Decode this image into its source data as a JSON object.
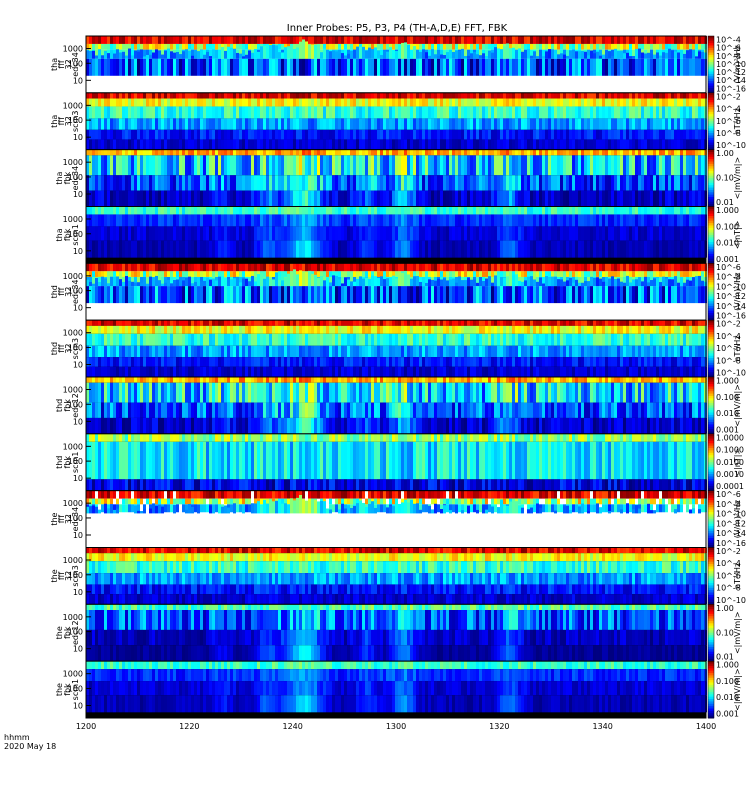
{
  "chart_data": {
    "type": "heatmap",
    "title": "Inner Probes: P5, P3, P4 (TH-A,D,E) FFT, FBK",
    "x_tick_labels": [
      "1200",
      "1220",
      "1240",
      "1300",
      "1320",
      "1340",
      "1400"
    ],
    "footer": [
      "hhmm",
      "2020 May 18"
    ],
    "panels": [
      {
        "probe": "tha",
        "kind": "fff",
        "row1": "32",
        "row2": "edc34",
        "y_ticks": [
          "1000",
          "100",
          "10"
        ],
        "cb_ticks": [
          "10^-4",
          "10^-6",
          "10^-8",
          "10^-10",
          "10^-12",
          "10^-14",
          "10^-16"
        ],
        "cb_label": "(V/m)²/Hz",
        "style": "edc_fff"
      },
      {
        "probe": "tha",
        "kind": "fff",
        "row1": "32",
        "row2": "scm3",
        "y_ticks": [
          "1000",
          "100",
          "10"
        ],
        "cb_ticks": [
          "10^-2",
          "10^-4",
          "10^-6",
          "10^-8",
          "10^-10"
        ],
        "cb_label": "nT²/Hz",
        "style": "scm_fff"
      },
      {
        "probe": "tha",
        "kind": "fbk",
        "row1": "",
        "row2": "edc34",
        "y_ticks": [
          "1000",
          "100",
          "10"
        ],
        "cb_ticks": [
          "1.00",
          "0.10",
          "0.01"
        ],
        "cb_label": "<|mV/m|>",
        "style": "edc_fbk"
      },
      {
        "probe": "tha",
        "kind": "fbk",
        "row1": "",
        "row2": "scm1",
        "y_ticks": [
          "1000",
          "100",
          "10"
        ],
        "cb_ticks": [
          "1.000",
          "0.100",
          "0.010",
          "0.001"
        ],
        "cb_label": "<|nT|>",
        "style": "scm_fbk"
      },
      {
        "probe": "thd",
        "kind": "fff",
        "row1": "32",
        "row2": "edc34",
        "y_ticks": [
          "1000",
          "100",
          "10"
        ],
        "cb_ticks": [
          "10^-6",
          "10^-8",
          "10^-10",
          "10^-12",
          "10^-14",
          "10^-16"
        ],
        "cb_label": "(V/m)²/Hz",
        "style": "edc_fff"
      },
      {
        "probe": "thd",
        "kind": "fff",
        "row1": "32",
        "row2": "scm3",
        "y_ticks": [
          "1000",
          "100",
          "10"
        ],
        "cb_ticks": [
          "10^-2",
          "10^-4",
          "10^-6",
          "10^-8",
          "10^-10"
        ],
        "cb_label": "nT²/Hz",
        "style": "scm_fff"
      },
      {
        "probe": "thd",
        "kind": "fbk",
        "row1": "",
        "row2": "edc12",
        "y_ticks": [
          "1000",
          "100",
          "10"
        ],
        "cb_ticks": [
          "1.000",
          "0.100",
          "0.010",
          "0.001"
        ],
        "cb_label": "<|mV/m|>",
        "style": "edc_fbk"
      },
      {
        "probe": "thd",
        "kind": "fbk",
        "row1": "",
        "row2": "scm1",
        "y_ticks": [
          "1000",
          "100",
          "10"
        ],
        "cb_ticks": [
          "1.0000",
          "0.1000",
          "0.0100",
          "0.0010",
          "0.0001"
        ],
        "cb_label": "<|nT|>",
        "style": "scm_fbk_hi"
      },
      {
        "probe": "the",
        "kind": "fff",
        "row1": "32",
        "row2": "edc34",
        "y_ticks": [
          "1000",
          "100",
          "10"
        ],
        "cb_ticks": [
          "10^-6",
          "10^-8",
          "10^-10",
          "10^-12",
          "10^-14",
          "10^-16"
        ],
        "cb_label": "(V/m)²/Hz",
        "style": "edc_fff_sparse"
      },
      {
        "probe": "the",
        "kind": "fff",
        "row1": "32",
        "row2": "scm3",
        "y_ticks": [
          "1000",
          "100",
          "10"
        ],
        "cb_ticks": [
          "10^-2",
          "10^-4",
          "10^-6",
          "10^-8",
          "10^-10"
        ],
        "cb_label": "nT²/Hz",
        "style": "scm_fff"
      },
      {
        "probe": "the",
        "kind": "fbk",
        "row1": "",
        "row2": "edc12",
        "y_ticks": [
          "1000",
          "100",
          "10"
        ],
        "cb_ticks": [
          "1.00",
          "0.10",
          "0.01"
        ],
        "cb_label": "<|mV/m|>",
        "style": "edc_fbk_dark"
      },
      {
        "probe": "the",
        "kind": "fbk",
        "row1": "",
        "row2": "scm1",
        "y_ticks": [
          "1000",
          "100",
          "10"
        ],
        "cb_ticks": [
          "1.000",
          "0.100",
          "0.010",
          "0.001"
        ],
        "cb_label": "<|mV/m|>",
        "style": "scm_fbk"
      }
    ]
  }
}
